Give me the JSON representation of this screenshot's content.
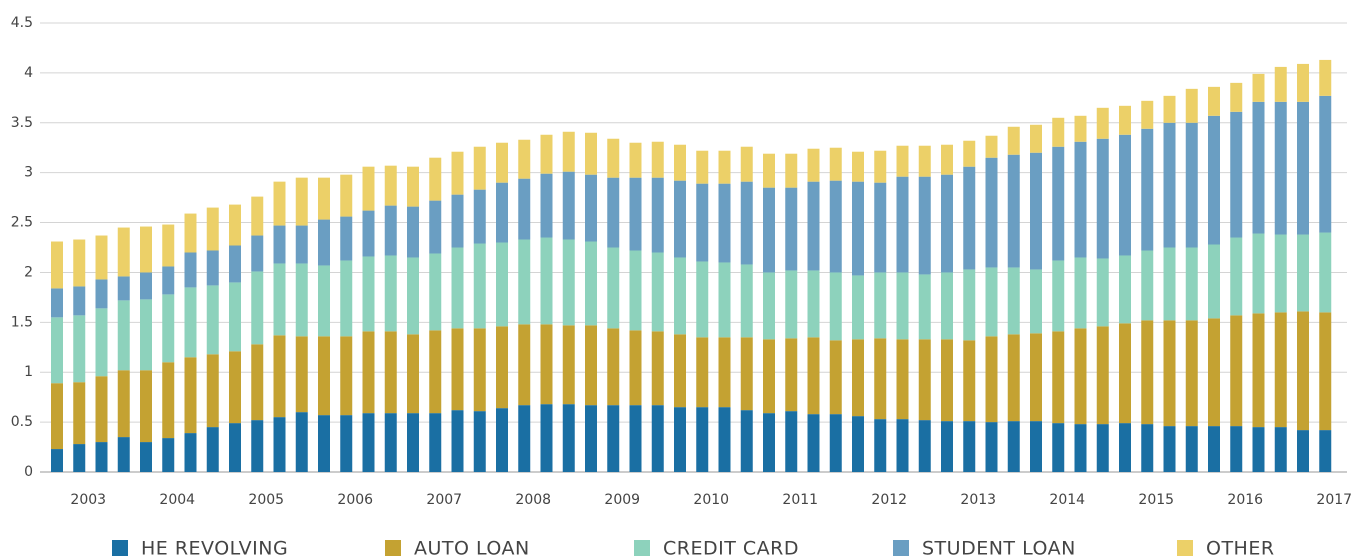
{
  "chart_data": {
    "type": "stacked_bar",
    "categories": [
      null,
      "2003",
      null,
      null,
      null,
      "2004",
      null,
      null,
      null,
      "2005",
      null,
      null,
      null,
      "2006",
      null,
      null,
      null,
      "2007",
      null,
      null,
      null,
      "2008",
      null,
      null,
      null,
      "2009",
      null,
      null,
      null,
      "2010",
      null,
      null,
      null,
      "2011",
      null,
      null,
      null,
      "2012",
      null,
      null,
      null,
      "2013",
      null,
      null,
      null,
      "2014",
      null,
      null,
      null,
      "2015",
      null,
      null,
      null,
      "2016",
      null,
      null,
      null,
      "2017"
    ],
    "series": [
      {
        "name": "HE REVOLVING",
        "color": "#1a6fa3",
        "values": [
          0.23,
          0.28,
          0.3,
          0.35,
          0.3,
          0.34,
          0.39,
          0.45,
          0.49,
          0.52,
          0.55,
          0.6,
          0.57,
          0.57,
          0.59,
          0.59,
          0.59,
          0.59,
          0.62,
          0.61,
          0.64,
          0.67,
          0.68,
          0.68,
          0.67,
          0.67,
          0.67,
          0.67,
          0.65,
          0.65,
          0.65,
          0.62,
          0.59,
          0.61,
          0.58,
          0.58,
          0.56,
          0.53,
          0.53,
          0.52,
          0.51,
          0.51,
          0.5,
          0.51,
          0.51,
          0.49,
          0.48,
          0.48,
          0.49,
          0.48,
          0.46,
          0.46,
          0.46,
          0.46,
          0.45,
          0.45,
          0.42,
          0.42
        ]
      },
      {
        "name": "AUTO LOAN",
        "color": "#c4a232",
        "values": [
          0.66,
          0.62,
          0.66,
          0.67,
          0.72,
          0.76,
          0.76,
          0.73,
          0.72,
          0.76,
          0.82,
          0.76,
          0.79,
          0.79,
          0.82,
          0.82,
          0.79,
          0.83,
          0.82,
          0.83,
          0.82,
          0.81,
          0.8,
          0.79,
          0.8,
          0.77,
          0.75,
          0.74,
          0.73,
          0.7,
          0.7,
          0.73,
          0.74,
          0.73,
          0.77,
          0.74,
          0.77,
          0.81,
          0.8,
          0.81,
          0.82,
          0.81,
          0.86,
          0.87,
          0.88,
          0.92,
          0.96,
          0.98,
          1.0,
          1.04,
          1.06,
          1.06,
          1.08,
          1.11,
          1.14,
          1.15,
          1.19,
          1.18
        ]
      },
      {
        "name": "CREDIT CARD",
        "color": "#8dd2bc",
        "values": [
          0.66,
          0.67,
          0.68,
          0.7,
          0.71,
          0.68,
          0.7,
          0.69,
          0.69,
          0.73,
          0.72,
          0.73,
          0.71,
          0.76,
          0.75,
          0.76,
          0.77,
          0.77,
          0.81,
          0.85,
          0.84,
          0.85,
          0.87,
          0.86,
          0.84,
          0.81,
          0.8,
          0.79,
          0.77,
          0.76,
          0.75,
          0.73,
          0.67,
          0.68,
          0.67,
          0.68,
          0.64,
          0.66,
          0.67,
          0.65,
          0.67,
          0.71,
          0.69,
          0.67,
          0.64,
          0.71,
          0.71,
          0.68,
          0.68,
          0.7,
          0.73,
          0.73,
          0.74,
          0.78,
          0.8,
          0.78,
          0.77,
          0.8
        ]
      },
      {
        "name": "STUDENT LOAN",
        "color": "#6a9ec2",
        "values": [
          0.29,
          0.29,
          0.29,
          0.24,
          0.27,
          0.28,
          0.35,
          0.35,
          0.37,
          0.36,
          0.38,
          0.38,
          0.46,
          0.44,
          0.46,
          0.5,
          0.51,
          0.53,
          0.53,
          0.54,
          0.6,
          0.61,
          0.64,
          0.68,
          0.67,
          0.7,
          0.73,
          0.75,
          0.77,
          0.78,
          0.79,
          0.83,
          0.85,
          0.83,
          0.89,
          0.92,
          0.94,
          0.9,
          0.96,
          0.98,
          0.98,
          1.03,
          1.1,
          1.13,
          1.17,
          1.14,
          1.16,
          1.2,
          1.21,
          1.22,
          1.25,
          1.25,
          1.29,
          1.26,
          1.32,
          1.33,
          1.33,
          1.37
        ]
      },
      {
        "name": "OTHER",
        "color": "#ecd068",
        "values": [
          0.47,
          0.47,
          0.44,
          0.49,
          0.46,
          0.42,
          0.39,
          0.43,
          0.41,
          0.39,
          0.44,
          0.48,
          0.42,
          0.42,
          0.44,
          0.4,
          0.4,
          0.43,
          0.43,
          0.43,
          0.4,
          0.39,
          0.39,
          0.4,
          0.42,
          0.39,
          0.35,
          0.36,
          0.36,
          0.33,
          0.33,
          0.35,
          0.34,
          0.34,
          0.33,
          0.33,
          0.3,
          0.32,
          0.31,
          0.31,
          0.3,
          0.26,
          0.22,
          0.28,
          0.28,
          0.29,
          0.26,
          0.31,
          0.29,
          0.28,
          0.27,
          0.34,
          0.29,
          0.29,
          0.28,
          0.35,
          0.38,
          0.36
        ]
      }
    ],
    "ylim": [
      0,
      4.5
    ],
    "yticks": [
      0,
      0.5,
      1,
      1.5,
      2,
      2.5,
      3,
      3.5,
      4,
      4.5
    ],
    "grid": true
  }
}
